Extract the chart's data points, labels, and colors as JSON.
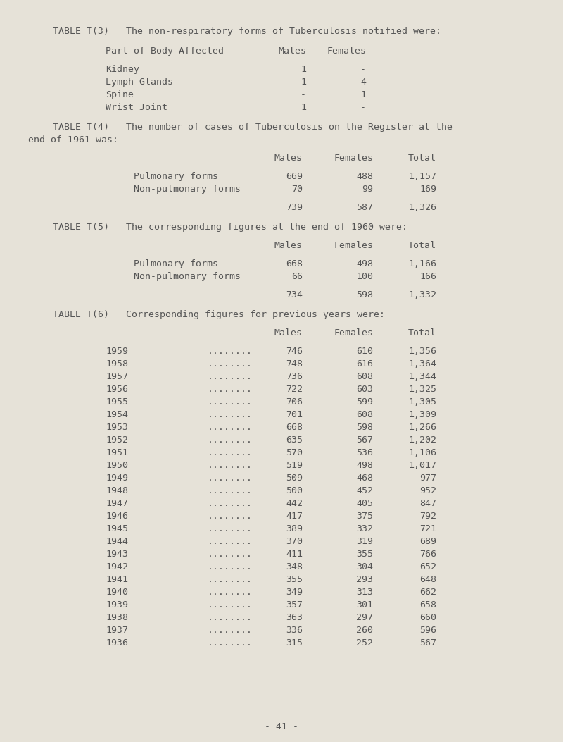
{
  "bg_color": "#e6e2d8",
  "text_color": "#555555",
  "page_number": "- 41 -",
  "t3_title": "TABLE T(3)   The non-respiratory forms of Tuberculosis notified were:",
  "t3_header_col1": "Part of Body Affected",
  "t3_header_col2": "Males",
  "t3_header_col3": "Females",
  "t3_rows": [
    [
      "Kidney",
      "1",
      "-"
    ],
    [
      "Lymph Glands",
      "1",
      "4"
    ],
    [
      "Spine",
      "-",
      "1"
    ],
    [
      "Wrist Joint",
      "1",
      "-"
    ]
  ],
  "t4_title_line1": "TABLE T(4)   The number of cases of Tuberculosis on the Register at the",
  "t4_title_line2": "end of 1961 was:",
  "t4_h_males": "Males",
  "t4_h_females": "Females",
  "t4_h_total": "Total",
  "t4_rows": [
    [
      "Pulmonary forms",
      "669",
      "488",
      "1,157"
    ],
    [
      "Non-pulmonary forms",
      "70",
      "99",
      "169"
    ],
    [
      "",
      "739",
      "587",
      "1,326"
    ]
  ],
  "t5_title": "TABLE T(5)   The corresponding figures at the end of 1960 were:",
  "t5_rows": [
    [
      "Pulmonary forms",
      "668",
      "498",
      "1,166"
    ],
    [
      "Non-pulmonary forms",
      "66",
      "100",
      "166"
    ],
    [
      "",
      "734",
      "598",
      "1,332"
    ]
  ],
  "t6_title": "TABLE T(6)   Corresponding figures for previous years were:",
  "t6_rows": [
    [
      "1959",
      "........",
      "746",
      "610",
      "1,356"
    ],
    [
      "1958",
      "........",
      "748",
      "616",
      "1,364"
    ],
    [
      "1957",
      "........",
      "736",
      "608",
      "1,344"
    ],
    [
      "1956",
      "........",
      "722",
      "603",
      "1,325"
    ],
    [
      "1955",
      "........",
      "706",
      "599",
      "1,305"
    ],
    [
      "1954",
      "........",
      "701",
      "608",
      "1,309"
    ],
    [
      "1953",
      "........",
      "668",
      "598",
      "1,266"
    ],
    [
      "1952",
      "........",
      "635",
      "567",
      "1,202"
    ],
    [
      "1951",
      "........",
      "570",
      "536",
      "1,106"
    ],
    [
      "1950",
      "........",
      "519",
      "498",
      "1,017"
    ],
    [
      "1949",
      "........",
      "509",
      "468",
      "977"
    ],
    [
      "1948",
      "........",
      "500",
      "452",
      "952"
    ],
    [
      "1947",
      "........",
      "442",
      "405",
      "847"
    ],
    [
      "1946",
      "........",
      "417",
      "375",
      "792"
    ],
    [
      "1945",
      "........",
      "389",
      "332",
      "721"
    ],
    [
      "1944",
      "........",
      "370",
      "319",
      "689"
    ],
    [
      "1943",
      "........",
      "411",
      "355",
      "766"
    ],
    [
      "1942",
      "........",
      "348",
      "304",
      "652"
    ],
    [
      "1941",
      "........",
      "355",
      "293",
      "648"
    ],
    [
      "1940",
      "........",
      "349",
      "313",
      "662"
    ],
    [
      "1939",
      "........",
      "357",
      "301",
      "658"
    ],
    [
      "1938",
      "........",
      "363",
      "297",
      "660"
    ],
    [
      "1937",
      "........",
      "336",
      "260",
      "596"
    ],
    [
      "1936",
      "........",
      "315",
      "252",
      "567"
    ]
  ]
}
